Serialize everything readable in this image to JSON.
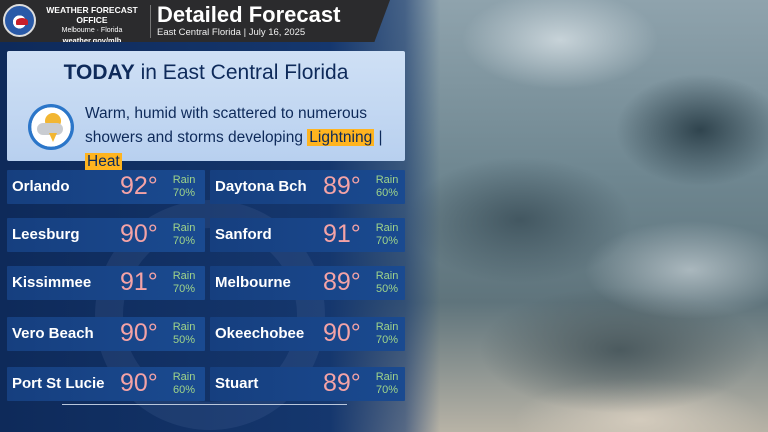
{
  "header": {
    "office_line1": "WEATHER FORECAST OFFICE",
    "office_line2": "Melbourne · Florida",
    "office_line3": "weather.gov/mlb",
    "title": "Detailed Forecast",
    "subtitle": "East Central Florida  |  July 16, 2025"
  },
  "today": {
    "title_bold": "TODAY",
    "title_rest": " in East Central Florida",
    "icon": "thunderstorm-sun-icon",
    "description": "Warm, humid with scattered to numerous showers and storms developing",
    "tag1": "Lightning",
    "divider": "|",
    "tag2": "Heat"
  },
  "cities": [
    {
      "name": "Orlando",
      "temp": "92°",
      "rain_label": "Rain",
      "rain": "70%"
    },
    {
      "name": "Daytona Bch",
      "temp": "89°",
      "rain_label": "Rain",
      "rain": "60%"
    },
    {
      "name": "Leesburg",
      "temp": "90°",
      "rain_label": "Rain",
      "rain": "70%"
    },
    {
      "name": "Sanford",
      "temp": "91°",
      "rain_label": "Rain",
      "rain": "70%"
    },
    {
      "name": "Kissimmee",
      "temp": "91°",
      "rain_label": "Rain",
      "rain": "70%"
    },
    {
      "name": "Melbourne",
      "temp": "89°",
      "rain_label": "Rain",
      "rain": "50%"
    },
    {
      "name": "Vero Beach",
      "temp": "90°",
      "rain_label": "Rain",
      "rain": "50%"
    },
    {
      "name": "Okeechobee",
      "temp": "90°",
      "rain_label": "Rain",
      "rain": "70%"
    },
    {
      "name": "Port St Lucie",
      "temp": "90°",
      "rain_label": "Rain",
      "rain": "60%"
    },
    {
      "name": "Stuart",
      "temp": "89°",
      "rain_label": "Rain",
      "rain": "70%"
    }
  ],
  "colors": {
    "panel": "#15376e",
    "row": "#1a4a90",
    "temp": "#f4a3a6",
    "rain": "#9fd48a",
    "tag": "#ffb41f"
  }
}
